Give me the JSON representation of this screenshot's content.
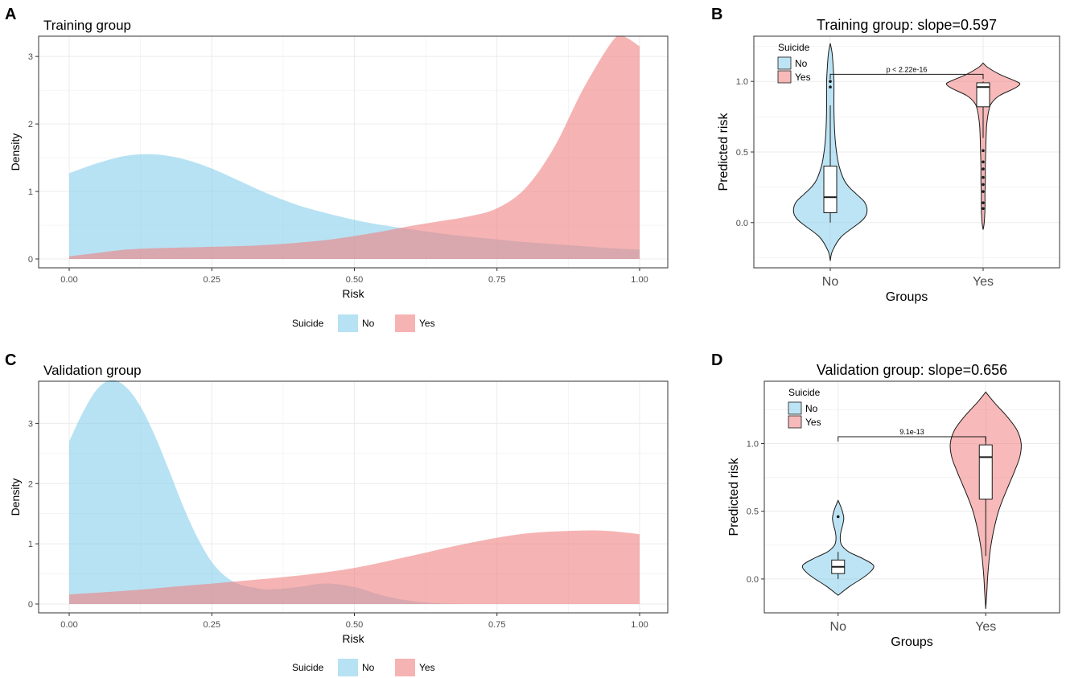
{
  "colors": {
    "no": "#87CEEB",
    "yes": "#F08080",
    "grid": "#ebebeb",
    "panel_border": "#333333"
  },
  "chart_data": [
    {
      "id": "A",
      "panel_label": "A",
      "type": "area",
      "title": "Training group",
      "xlabel": "Risk",
      "ylabel": "Density",
      "xlim": [
        0,
        1
      ],
      "ylim": [
        0,
        3.3
      ],
      "xticks": [
        0,
        0.25,
        0.5,
        0.75,
        1
      ],
      "xtick_labels": [
        "0.00",
        "0.25",
        "0.50",
        "0.75",
        "1.00"
      ],
      "yticks": [
        0,
        1,
        2,
        3
      ],
      "ytick_labels": [
        "0",
        "1",
        "2",
        "3"
      ],
      "legend": {
        "title": "Suicide",
        "labels": [
          "No",
          "Yes"
        ]
      },
      "series": [
        {
          "name": "No",
          "x": [
            0,
            0.05,
            0.1,
            0.15,
            0.2,
            0.25,
            0.3,
            0.35,
            0.4,
            0.45,
            0.5,
            0.55,
            0.6,
            0.65,
            0.7,
            0.75,
            0.8,
            0.85,
            0.9,
            0.95,
            1.0
          ],
          "y": [
            1.27,
            1.42,
            1.53,
            1.55,
            1.48,
            1.34,
            1.15,
            0.96,
            0.8,
            0.68,
            0.58,
            0.5,
            0.44,
            0.38,
            0.33,
            0.29,
            0.25,
            0.22,
            0.19,
            0.16,
            0.14
          ]
        },
        {
          "name": "Yes",
          "x": [
            0,
            0.05,
            0.1,
            0.15,
            0.2,
            0.25,
            0.3,
            0.35,
            0.4,
            0.45,
            0.5,
            0.55,
            0.6,
            0.65,
            0.7,
            0.75,
            0.8,
            0.85,
            0.9,
            0.95,
            0.97,
            1.0
          ],
          "y": [
            0.04,
            0.09,
            0.14,
            0.16,
            0.17,
            0.18,
            0.19,
            0.21,
            0.24,
            0.28,
            0.34,
            0.41,
            0.49,
            0.56,
            0.63,
            0.75,
            1.05,
            1.65,
            2.5,
            3.2,
            3.3,
            3.15
          ]
        }
      ]
    },
    {
      "id": "B",
      "panel_label": "B",
      "type": "violin",
      "title": "Training group: slope=0.597",
      "xlabel": "Groups",
      "ylabel": "Predicted risk",
      "ylim": [
        -0.32,
        1.32
      ],
      "yticks": [
        0,
        0.5,
        1
      ],
      "ytick_labels": [
        "0.0",
        "0.5",
        "1.0"
      ],
      "categories": [
        "No",
        "Yes"
      ],
      "legend": {
        "title": "Suicide",
        "labels": [
          "No",
          "Yes"
        ]
      },
      "significance": {
        "label": "p < 2.22e-16",
        "y": 1.05
      },
      "groups": [
        {
          "name": "No",
          "violin_y": [
            -0.27,
            -0.2,
            -0.1,
            0.0,
            0.05,
            0.1,
            0.15,
            0.2,
            0.25,
            0.3,
            0.4,
            0.5,
            0.6,
            0.7,
            0.8,
            0.9,
            1.0,
            1.1,
            1.2,
            1.27
          ],
          "violin_w": [
            0.0,
            0.06,
            0.3,
            0.8,
            0.97,
            1.0,
            0.92,
            0.72,
            0.52,
            0.38,
            0.24,
            0.17,
            0.13,
            0.11,
            0.1,
            0.1,
            0.1,
            0.08,
            0.05,
            0.0
          ],
          "box": {
            "lower_whisker": 0.0,
            "q1": 0.07,
            "median": 0.18,
            "q3": 0.4,
            "upper_whisker": 0.83
          },
          "outliers": [
            0.96,
            1.0
          ]
        },
        {
          "name": "Yes",
          "violin_y": [
            -0.05,
            0.0,
            0.1,
            0.2,
            0.3,
            0.4,
            0.5,
            0.6,
            0.7,
            0.8,
            0.85,
            0.9,
            0.95,
            0.98,
            1.0,
            1.05,
            1.1,
            1.13
          ],
          "violin_w": [
            0.0,
            0.03,
            0.05,
            0.05,
            0.06,
            0.06,
            0.07,
            0.08,
            0.1,
            0.16,
            0.24,
            0.45,
            0.85,
            1.0,
            0.9,
            0.45,
            0.12,
            0.0
          ],
          "box": {
            "lower_whisker": 0.6,
            "q1": 0.82,
            "median": 0.96,
            "q3": 0.99,
            "upper_whisker": 1.0
          },
          "outliers": [
            0.1,
            0.14,
            0.22,
            0.27,
            0.32,
            0.38,
            0.43,
            0.51
          ]
        }
      ]
    },
    {
      "id": "C",
      "panel_label": "C",
      "type": "area",
      "title": "Validation group",
      "xlabel": "Risk",
      "ylabel": "Density",
      "xlim": [
        0,
        1
      ],
      "ylim": [
        0,
        3.7
      ],
      "xticks": [
        0,
        0.25,
        0.5,
        0.75,
        1
      ],
      "xtick_labels": [
        "0.00",
        "0.25",
        "0.50",
        "0.75",
        "1.00"
      ],
      "yticks": [
        0,
        1,
        2,
        3
      ],
      "ytick_labels": [
        "0",
        "1",
        "2",
        "3"
      ],
      "legend": {
        "title": "Suicide",
        "labels": [
          "No",
          "Yes"
        ]
      },
      "series": [
        {
          "name": "No",
          "x": [
            0,
            0.025,
            0.05,
            0.075,
            0.1,
            0.125,
            0.15,
            0.175,
            0.2,
            0.225,
            0.25,
            0.275,
            0.3,
            0.325,
            0.35,
            0.4,
            0.45,
            0.5,
            0.55,
            0.6,
            0.65,
            0.7
          ],
          "y": [
            2.7,
            3.2,
            3.58,
            3.72,
            3.6,
            3.28,
            2.8,
            2.22,
            1.62,
            1.1,
            0.7,
            0.45,
            0.32,
            0.27,
            0.24,
            0.28,
            0.34,
            0.28,
            0.14,
            0.05,
            0.01,
            0.0
          ]
        },
        {
          "name": "Yes",
          "x": [
            0,
            0.1,
            0.2,
            0.3,
            0.4,
            0.5,
            0.6,
            0.7,
            0.8,
            0.9,
            0.95,
            1.0
          ],
          "y": [
            0.16,
            0.22,
            0.3,
            0.38,
            0.47,
            0.6,
            0.8,
            1.01,
            1.17,
            1.22,
            1.21,
            1.16
          ]
        }
      ]
    },
    {
      "id": "D",
      "panel_label": "D",
      "type": "violin",
      "title": "Validation group: slope=0.656",
      "xlabel": "Groups",
      "ylabel": "Predicted risk",
      "ylim": [
        -0.25,
        1.46
      ],
      "yticks": [
        0,
        0.5,
        1
      ],
      "ytick_labels": [
        "0.0",
        "0.5",
        "1.0"
      ],
      "categories": [
        "No",
        "Yes"
      ],
      "legend": {
        "title": "Suicide",
        "labels": [
          "No",
          "Yes"
        ]
      },
      "significance": {
        "label": "9.1e-13",
        "y": 1.05
      },
      "groups": [
        {
          "name": "No",
          "violin_y": [
            -0.12,
            -0.05,
            0.0,
            0.05,
            0.1,
            0.15,
            0.2,
            0.25,
            0.3,
            0.35,
            0.4,
            0.45,
            0.5,
            0.55,
            0.58
          ],
          "violin_w": [
            0.0,
            0.35,
            0.65,
            0.9,
            1.0,
            0.7,
            0.3,
            0.1,
            0.06,
            0.08,
            0.13,
            0.16,
            0.12,
            0.05,
            0.0
          ]
        },
        {
          "name": "Yes",
          "violin_y": [
            -0.22,
            -0.1,
            0.0,
            0.1,
            0.2,
            0.3,
            0.4,
            0.5,
            0.6,
            0.7,
            0.8,
            0.9,
            1.0,
            1.1,
            1.2,
            1.3,
            1.38
          ],
          "violin_w": [
            0.0,
            0.03,
            0.05,
            0.08,
            0.12,
            0.18,
            0.26,
            0.36,
            0.5,
            0.66,
            0.82,
            0.96,
            1.0,
            0.88,
            0.6,
            0.25,
            0.0
          ]
        }
      ],
      "boxes": [
        {
          "name": "No",
          "box": {
            "lower_whisker": 0.0,
            "q1": 0.04,
            "median": 0.09,
            "q3": 0.14,
            "upper_whisker": 0.2
          },
          "outliers": [
            0.46
          ]
        },
        {
          "name": "Yes",
          "box": {
            "lower_whisker": 0.17,
            "q1": 0.59,
            "median": 0.9,
            "q3": 0.99,
            "upper_whisker": 1.05
          },
          "outliers": []
        }
      ]
    }
  ]
}
